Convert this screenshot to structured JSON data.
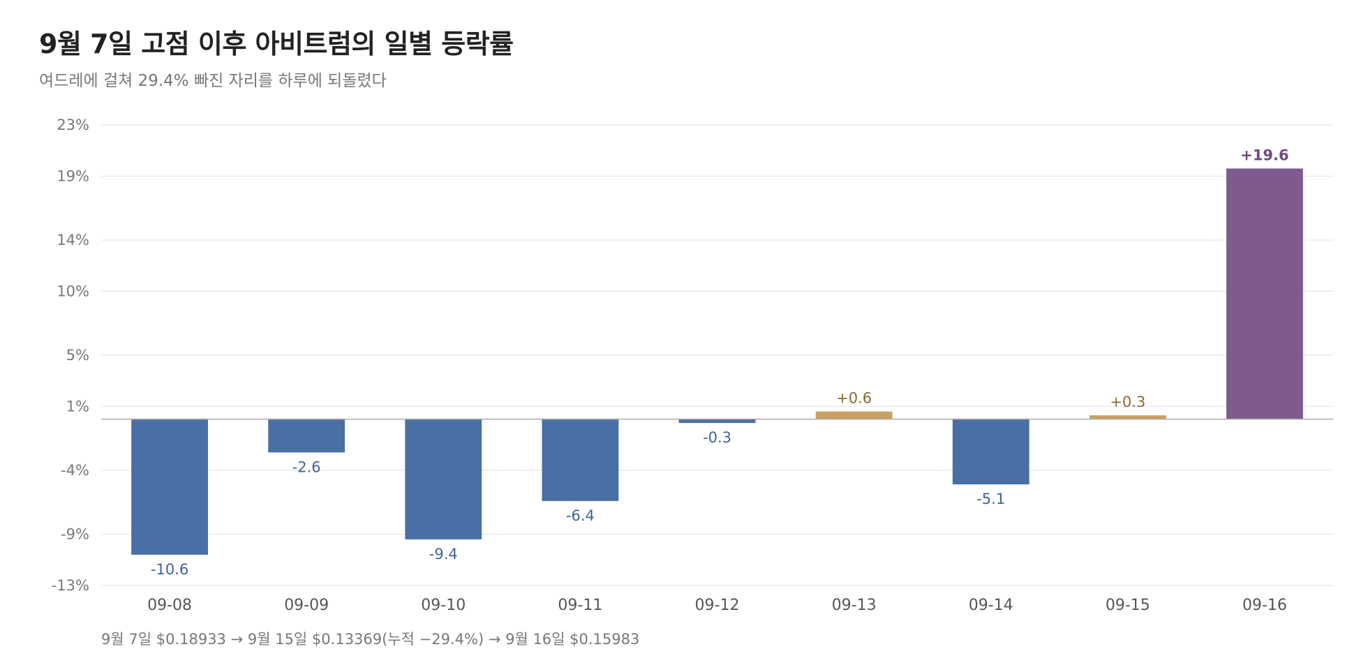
{
  "header": {
    "title": "9월 7일 고점 이후 아비트럼의 일별 등락률",
    "subtitle": "여드레에 걸쳐 29.4% 빠진 자리를 하루에 되돌렸다"
  },
  "footnote": "9월 7일 $0.18933 → 9월 15일 $0.13369(누적 −29.4%) → 9월 16일 $0.15983",
  "colors": {
    "negative": "#4a6fa5",
    "positive": "#c9a064",
    "highlight": "#7e5a8e",
    "negative_label": "#3d6399",
    "positive_label": "#8a6a30",
    "highlight_label": "#6e4a82",
    "grid": "#e4e4e4",
    "zero_line": "#aaaaaa"
  },
  "chart_data": {
    "type": "bar",
    "title": "9월 7일 고점 이후 아비트럼의 일별 등락률",
    "subtitle": "여드레에 걸쳐 29.4% 빠진 자리를 하루에 되돌렸다",
    "xlabel": "",
    "ylabel": "",
    "unit": "%",
    "categories": [
      "09-08",
      "09-09",
      "09-10",
      "09-11",
      "09-12",
      "09-13",
      "09-14",
      "09-15",
      "09-16"
    ],
    "values": [
      -10.6,
      -2.6,
      -9.4,
      -6.4,
      -0.3,
      0.6,
      -5.1,
      0.3,
      19.6
    ],
    "value_labels": [
      "-10.6",
      "-2.6",
      "-9.4",
      "-6.4",
      "-0.3",
      "+0.6",
      "-5.1",
      "+0.3",
      "+19.6"
    ],
    "highlight_index": 8,
    "yticks": [
      23,
      19,
      14,
      10,
      5,
      1,
      -4,
      -9,
      -13
    ],
    "ytick_labels": [
      "23%",
      "19%",
      "14%",
      "10%",
      "5%",
      "1%",
      "-4%",
      "-9%",
      "-13%"
    ],
    "ylim": [
      -13.5,
      23.5
    ],
    "grid": true,
    "legend": "none"
  }
}
